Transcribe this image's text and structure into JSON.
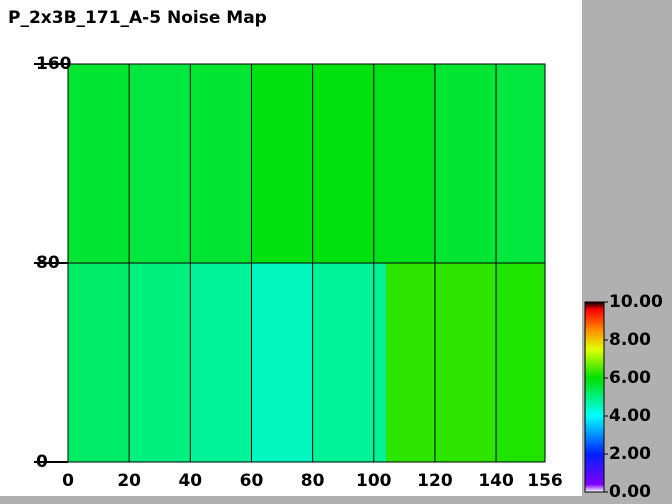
{
  "chart_data": {
    "type": "heatmap",
    "title": "P_2x3B_171_A-5 Noise Map",
    "x_edges": [
      0,
      20,
      40,
      60,
      80,
      100,
      104,
      120,
      140,
      156
    ],
    "y_edges": [
      0,
      80,
      160
    ],
    "values": [
      [
        5.2,
        5.0,
        4.8,
        4.5,
        4.8,
        4.8,
        6.3,
        6.3,
        6.2
      ],
      [
        5.6,
        5.5,
        5.6,
        5.9,
        5.9,
        5.8,
        5.8,
        5.6,
        5.5
      ]
    ],
    "xlim": [
      0,
      156
    ],
    "xticks": [
      0,
      20,
      40,
      60,
      80,
      100,
      120,
      140,
      156
    ],
    "ylim": [
      0,
      160
    ],
    "yticks": [
      0,
      80,
      160
    ],
    "grid": true,
    "colorscale": [
      [
        0,
        "#ffffff"
      ],
      [
        0.4,
        "#8000ff"
      ],
      [
        2,
        "#0020ff"
      ],
      [
        4,
        "#00ffff"
      ],
      [
        6,
        "#00e000"
      ],
      [
        7.5,
        "#e0ff00"
      ],
      [
        8.5,
        "#ff9000"
      ],
      [
        9.6,
        "#ff0000"
      ],
      [
        10,
        "#000000"
      ]
    ],
    "clim": [
      0,
      10
    ],
    "cticks": [
      {
        "value": 0,
        "label": "0.00"
      },
      {
        "value": 2,
        "label": "2.00"
      },
      {
        "value": 4,
        "label": "4.00"
      },
      {
        "value": 6,
        "label": "6.00"
      },
      {
        "value": 8,
        "label": "8.00"
      },
      {
        "value": 10,
        "label": "10.00"
      }
    ]
  }
}
